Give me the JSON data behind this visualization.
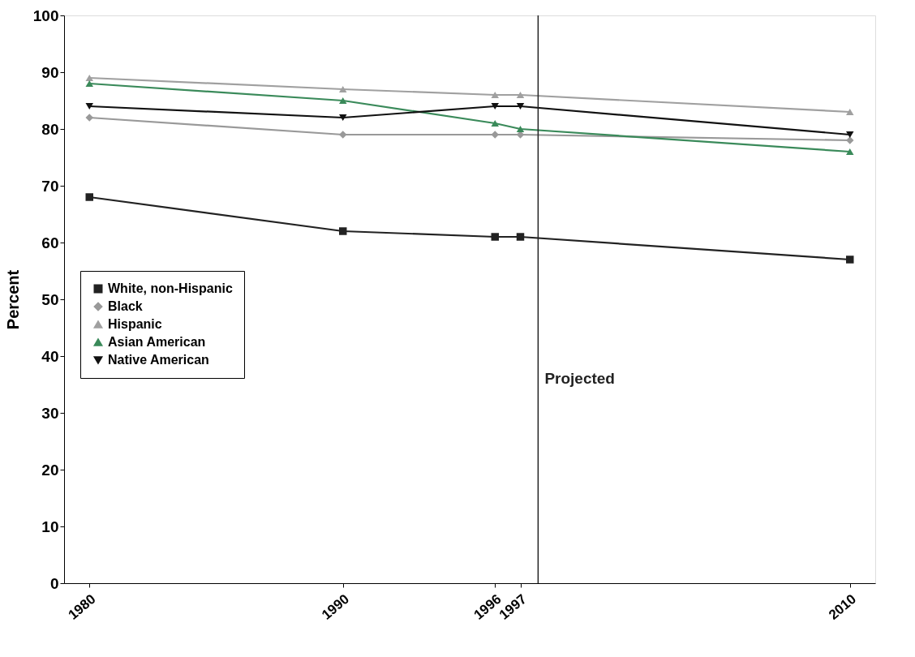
{
  "chart_data": {
    "type": "line",
    "ylabel": "Percent",
    "x": [
      1980,
      1990,
      1996,
      1997,
      2010
    ],
    "xlim": [
      1979,
      2011
    ],
    "xticks": [
      1980,
      1990,
      1996,
      1997,
      2010
    ],
    "ylim": [
      0,
      100
    ],
    "yticks": [
      0,
      10,
      20,
      30,
      40,
      50,
      60,
      70,
      80,
      90,
      100
    ],
    "series": [
      {
        "name": "White, non-Hispanic",
        "color": "#222222",
        "marker": "square",
        "values": [
          68,
          62,
          61,
          61,
          57
        ]
      },
      {
        "name": "Black",
        "color": "#999999",
        "marker": "diamond",
        "values": [
          82,
          79,
          79,
          79,
          78
        ]
      },
      {
        "name": "Hispanic",
        "color": "#a0a0a0",
        "marker": "triangle",
        "values": [
          89,
          87,
          86,
          86,
          83
        ]
      },
      {
        "name": "Asian American",
        "color": "#3a8a5a",
        "marker": "triangle",
        "values": [
          88,
          85,
          81,
          80,
          76
        ]
      },
      {
        "name": "Native American",
        "color": "#111111",
        "marker": "triangle-down",
        "values": [
          84,
          82,
          84,
          84,
          79
        ]
      }
    ],
    "ref_lines": [
      {
        "axis": "x",
        "value": 1997.7,
        "label": "Projected",
        "color": "#222222"
      }
    ],
    "grid": false,
    "legend": "left",
    "line_style": "solid"
  }
}
